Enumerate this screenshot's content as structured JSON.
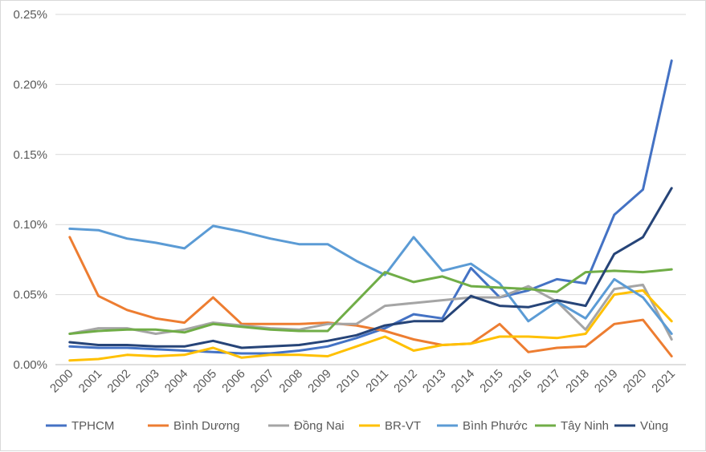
{
  "chart_data": {
    "type": "line",
    "title": "",
    "xlabel": "",
    "ylabel": "",
    "ylim": [
      0,
      0.25
    ],
    "y_unit": "%",
    "yticks": [
      "0.00%",
      "0.05%",
      "0.10%",
      "0.15%",
      "0.20%",
      "0.25%"
    ],
    "grid": "horizontal",
    "legend_position": "bottom",
    "categories": [
      "2000",
      "2001",
      "2002",
      "2003",
      "2004",
      "2005",
      "2006",
      "2007",
      "2008",
      "2009",
      "2010",
      "2011",
      "2012",
      "2013",
      "2014",
      "2015",
      "2016",
      "2017",
      "2018",
      "2019",
      "2020",
      "2021"
    ],
    "series": [
      {
        "name": "TPHCM",
        "color": "#4472C4",
        "values": [
          0.013,
          0.012,
          0.012,
          0.011,
          0.01,
          0.009,
          0.008,
          0.008,
          0.01,
          0.013,
          0.019,
          0.026,
          0.036,
          0.033,
          0.069,
          0.048,
          0.053,
          0.061,
          0.058,
          0.107,
          0.125,
          0.217
        ]
      },
      {
        "name": "Bình Dương",
        "color": "#ED7D31",
        "values": [
          0.091,
          0.049,
          0.039,
          0.033,
          0.03,
          0.048,
          0.029,
          0.029,
          0.029,
          0.03,
          0.028,
          0.024,
          0.018,
          0.014,
          0.015,
          0.029,
          0.009,
          0.012,
          0.013,
          0.029,
          0.032,
          0.006
        ]
      },
      {
        "name": "Đồng Nai",
        "color": "#A5A5A5",
        "values": [
          0.022,
          0.026,
          0.026,
          0.022,
          0.025,
          0.03,
          0.028,
          0.026,
          0.025,
          0.029,
          0.029,
          0.042,
          0.044,
          0.046,
          0.048,
          0.048,
          0.056,
          0.045,
          0.025,
          0.054,
          0.057,
          0.018
        ]
      },
      {
        "name": "BR-VT",
        "color": "#FFC000",
        "values": [
          0.003,
          0.004,
          0.007,
          0.006,
          0.007,
          0.012,
          0.005,
          0.007,
          0.007,
          0.006,
          0.013,
          0.02,
          0.01,
          0.014,
          0.015,
          0.02,
          0.02,
          0.019,
          0.022,
          0.05,
          0.053,
          0.031
        ]
      },
      {
        "name": "Bình Phước",
        "color": "#5B9BD5",
        "values": [
          0.097,
          0.096,
          0.09,
          0.087,
          0.083,
          0.099,
          0.095,
          0.09,
          0.086,
          0.086,
          0.074,
          0.064,
          0.091,
          0.067,
          0.072,
          0.058,
          0.031,
          0.045,
          0.033,
          0.061,
          0.048,
          0.022
        ]
      },
      {
        "name": "Tây Ninh",
        "color": "#70AD47",
        "values": [
          0.022,
          0.024,
          0.025,
          0.025,
          0.023,
          0.029,
          0.027,
          0.025,
          0.024,
          0.024,
          0.045,
          0.066,
          0.059,
          0.063,
          0.056,
          0.055,
          0.054,
          0.052,
          0.066,
          0.067,
          0.066,
          0.068
        ]
      },
      {
        "name": "Vùng",
        "color": "#264478",
        "values": [
          0.016,
          0.014,
          0.014,
          0.013,
          0.013,
          0.017,
          0.012,
          0.013,
          0.014,
          0.017,
          0.021,
          0.028,
          0.031,
          0.031,
          0.049,
          0.042,
          0.041,
          0.046,
          0.042,
          0.079,
          0.091,
          0.126
        ]
      }
    ]
  }
}
